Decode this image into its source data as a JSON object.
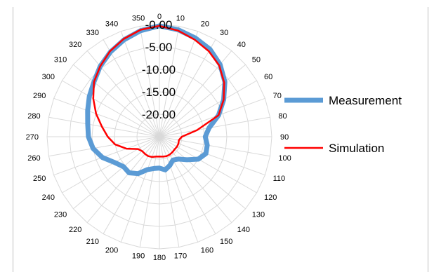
{
  "chart_data": {
    "type": "radar",
    "angle_unit": "degrees",
    "angles": [
      0,
      10,
      20,
      30,
      40,
      50,
      60,
      70,
      80,
      90,
      100,
      110,
      120,
      130,
      140,
      150,
      160,
      170,
      180,
      190,
      200,
      210,
      220,
      230,
      240,
      250,
      260,
      270,
      280,
      290,
      300,
      310,
      320,
      330,
      340,
      350
    ],
    "radial_ticks": [
      "-0.00",
      "-5.00",
      "-10.00",
      "-15.00",
      "-20.00"
    ],
    "radial_tick_values": [
      0,
      -5,
      -10,
      -15,
      -20
    ],
    "radial_range": [
      -25,
      0
    ],
    "series": [
      {
        "name": "Measurement",
        "color": "#5B9BD5",
        "values": [
          -0.3,
          -0.8,
          -1.6,
          -2.5,
          -4.0,
          -6.0,
          -8.5,
          -11.0,
          -13.8,
          -14.8,
          -14.2,
          -14.0,
          -15.0,
          -17.0,
          -18.5,
          -19.0,
          -18.2,
          -17.5,
          -18.0,
          -17.8,
          -17.2,
          -15.5,
          -14.5,
          -14.6,
          -13.5,
          -11.5,
          -10.0,
          -9.2,
          -8.8,
          -8.0,
          -7.0,
          -6.0,
          -4.5,
          -3.2,
          -2.0,
          -1.0
        ]
      },
      {
        "name": "Simulation",
        "color": "#FF0000",
        "values": [
          -0.3,
          -1.0,
          -2.0,
          -3.0,
          -4.3,
          -6.2,
          -8.5,
          -11.0,
          -16.5,
          -20.0,
          -20.6,
          -20.5,
          -20.5,
          -20.6,
          -20.5,
          -20.4,
          -20.4,
          -20.5,
          -20.6,
          -20.5,
          -20.2,
          -20.0,
          -20.0,
          -20.0,
          -19.5,
          -17.2,
          -15.0,
          -13.5,
          -12.0,
          -10.0,
          -8.0,
          -6.0,
          -4.5,
          -3.0,
          -1.8,
          -0.8
        ]
      }
    ],
    "legend_position": "right",
    "grid": true
  }
}
